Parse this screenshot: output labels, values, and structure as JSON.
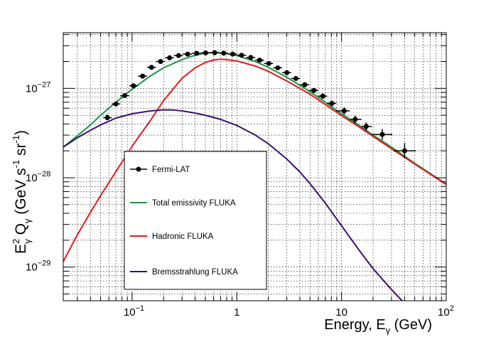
{
  "chart_data": {
    "type": "line",
    "title": "",
    "xlabel": {
      "main": "Energy, E",
      "sub": "γ",
      "suffix": " (GeV)"
    },
    "ylabel": {
      "e": "E",
      "e_sup": "2",
      "e_sub": "γ",
      "q": " Q",
      "q_sub": "γ",
      "units": " (GeV s",
      "s_sup": "-1",
      "sr": " sr",
      "sr_sup": "-1",
      "close": ")"
    },
    "xscale": "log",
    "yscale": "log",
    "xlim": [
      0.022,
      100
    ],
    "ylim": [
      4.2e-30,
      4.2e-27
    ],
    "grid": true,
    "legend_position": "lower-left inside",
    "xticks": [
      {
        "base": "10",
        "exp": "−1",
        "value": 0.1
      },
      {
        "plain": "1",
        "value": 1
      },
      {
        "plain": "10",
        "value": 10
      },
      {
        "plain": "10",
        "exp": "2",
        "value": 100
      }
    ],
    "yticks": [
      {
        "base": "10",
        "exp": "−29",
        "value": 1e-29
      },
      {
        "base": "10",
        "exp": "−28",
        "value": 1e-28
      },
      {
        "base": "10",
        "exp": "−27",
        "value": 1e-27
      }
    ],
    "series": [
      {
        "name": "Total emissivity FLUKA",
        "color": "#1a9641",
        "points": [
          [
            0.022,
            2.2e-28
          ],
          [
            0.03,
            2.95e-28
          ],
          [
            0.04,
            3.9e-28
          ],
          [
            0.05,
            5e-28
          ],
          [
            0.07,
            7e-28
          ],
          [
            0.1,
            9.8e-28
          ],
          [
            0.15,
            1.38e-27
          ],
          [
            0.2,
            1.7e-27
          ],
          [
            0.3,
            2.1e-27
          ],
          [
            0.4,
            2.35e-27
          ],
          [
            0.5,
            2.48e-27
          ],
          [
            0.6,
            2.52e-27
          ],
          [
            0.7,
            2.5e-27
          ],
          [
            0.8,
            2.45e-27
          ],
          [
            1.0,
            2.33e-27
          ],
          [
            1.5,
            2e-27
          ],
          [
            2.0,
            1.72e-27
          ],
          [
            3.0,
            1.33e-27
          ],
          [
            5.0,
            9.2e-28
          ],
          [
            7.0,
            7e-28
          ],
          [
            10.0,
            5.2e-28
          ],
          [
            15.0,
            3.8e-28
          ],
          [
            20.0,
            3e-28
          ],
          [
            30.0,
            2.2e-28
          ],
          [
            50.0,
            1.45e-28
          ],
          [
            70.0,
            1.12e-28
          ],
          [
            100.0,
            8.5e-29
          ]
        ]
      },
      {
        "name": "Hadronic FLUKA",
        "color": "#e31a1c",
        "points": [
          [
            0.022,
            1.15e-29
          ],
          [
            0.03,
            2.3e-29
          ],
          [
            0.04,
            4.1e-29
          ],
          [
            0.05,
            6.3e-29
          ],
          [
            0.07,
            1.17e-28
          ],
          [
            0.1,
            2.25e-28
          ],
          [
            0.15,
            4.4e-28
          ],
          [
            0.2,
            7.3e-28
          ],
          [
            0.3,
            1.3e-27
          ],
          [
            0.4,
            1.7e-27
          ],
          [
            0.5,
            1.95e-27
          ],
          [
            0.6,
            2.08e-27
          ],
          [
            0.7,
            2.12e-27
          ],
          [
            0.8,
            2.1e-27
          ],
          [
            1.0,
            2.03e-27
          ],
          [
            1.5,
            1.78e-27
          ],
          [
            2.0,
            1.55e-27
          ],
          [
            3.0,
            1.21e-27
          ],
          [
            5.0,
            8.6e-28
          ],
          [
            7.0,
            6.6e-28
          ],
          [
            10.0,
            4.95e-28
          ],
          [
            15.0,
            3.65e-28
          ],
          [
            20.0,
            2.9e-28
          ],
          [
            30.0,
            2.12e-28
          ],
          [
            50.0,
            1.42e-28
          ],
          [
            70.0,
            1.1e-28
          ],
          [
            100.0,
            8.4e-29
          ]
        ]
      },
      {
        "name": "Bremsstrahlung FLUKA",
        "color": "#3b0f70",
        "points": [
          [
            0.022,
            2.2e-28
          ],
          [
            0.03,
            2.8e-28
          ],
          [
            0.04,
            3.4e-28
          ],
          [
            0.05,
            3.9e-28
          ],
          [
            0.07,
            4.65e-28
          ],
          [
            0.1,
            5.2e-28
          ],
          [
            0.15,
            5.6e-28
          ],
          [
            0.2,
            5.75e-28
          ],
          [
            0.25,
            5.72e-28
          ],
          [
            0.3,
            5.6e-28
          ],
          [
            0.4,
            5.3e-28
          ],
          [
            0.5,
            5e-28
          ],
          [
            0.7,
            4.5e-28
          ],
          [
            1.0,
            3.85e-28
          ],
          [
            1.5,
            3e-28
          ],
          [
            2.0,
            2.4e-28
          ],
          [
            3.0,
            1.62e-28
          ],
          [
            4.0,
            1.16e-28
          ],
          [
            5.0,
            8.6e-29
          ],
          [
            7.0,
            5.2e-29
          ],
          [
            10.0,
            2.9e-29
          ],
          [
            15.0,
            1.5e-29
          ],
          [
            20.0,
            9.6e-30
          ],
          [
            30.0,
            5.6e-30
          ],
          [
            45.0,
            3.4e-30
          ]
        ]
      }
    ],
    "data_series": {
      "name": "Fermi-LAT",
      "color": "#000000",
      "points": [
        {
          "x": 0.058,
          "y": 4.7e-28,
          "xlo": 0.053,
          "xhi": 0.064,
          "ylo": 4.4e-28,
          "yhi": 5.1e-28
        },
        {
          "x": 0.07,
          "y": 6.7e-28,
          "xlo": 0.064,
          "xhi": 0.077,
          "ylo": 6.3e-28,
          "yhi": 7.1e-28
        },
        {
          "x": 0.085,
          "y": 8.3e-28,
          "xlo": 0.077,
          "xhi": 0.094,
          "ylo": 7.9e-28,
          "yhi": 8.8e-28
        },
        {
          "x": 0.103,
          "y": 1.07e-27,
          "xlo": 0.094,
          "xhi": 0.114,
          "ylo": 1.02e-27,
          "yhi": 1.12e-27
        },
        {
          "x": 0.126,
          "y": 1.37e-27,
          "xlo": 0.114,
          "xhi": 0.139,
          "ylo": 1.32e-27,
          "yhi": 1.42e-27
        },
        {
          "x": 0.153,
          "y": 1.72e-27,
          "xlo": 0.139,
          "xhi": 0.169,
          "ylo": 1.66e-27,
          "yhi": 1.78e-27
        },
        {
          "x": 0.187,
          "y": 2e-27,
          "xlo": 0.169,
          "xhi": 0.206,
          "ylo": 1.94e-27,
          "yhi": 2.06e-27
        },
        {
          "x": 0.228,
          "y": 2.2e-27,
          "xlo": 0.206,
          "xhi": 0.251,
          "ylo": 2.14e-27,
          "yhi": 2.26e-27
        },
        {
          "x": 0.278,
          "y": 2.33e-27,
          "xlo": 0.251,
          "xhi": 0.306,
          "ylo": 2.27e-27,
          "yhi": 2.39e-27
        },
        {
          "x": 0.339,
          "y": 2.42e-27,
          "xlo": 0.306,
          "xhi": 0.373,
          "ylo": 2.36e-27,
          "yhi": 2.48e-27
        },
        {
          "x": 0.413,
          "y": 2.47e-27,
          "xlo": 0.373,
          "xhi": 0.455,
          "ylo": 2.41e-27,
          "yhi": 2.53e-27
        },
        {
          "x": 0.504,
          "y": 2.5e-27,
          "xlo": 0.455,
          "xhi": 0.555,
          "ylo": 2.44e-27,
          "yhi": 2.56e-27
        },
        {
          "x": 0.614,
          "y": 2.51e-27,
          "xlo": 0.555,
          "xhi": 0.677,
          "ylo": 2.45e-27,
          "yhi": 2.57e-27
        },
        {
          "x": 0.749,
          "y": 2.48e-27,
          "xlo": 0.677,
          "xhi": 0.825,
          "ylo": 2.42e-27,
          "yhi": 2.54e-27
        },
        {
          "x": 0.913,
          "y": 2.42e-27,
          "xlo": 0.825,
          "xhi": 1.006,
          "ylo": 2.36e-27,
          "yhi": 2.48e-27
        },
        {
          "x": 1.11,
          "y": 2.35e-27,
          "xlo": 1.006,
          "xhi": 1.23,
          "ylo": 2.28e-27,
          "yhi": 2.42e-27
        },
        {
          "x": 1.36,
          "y": 2.22e-27,
          "xlo": 1.23,
          "xhi": 1.5,
          "ylo": 2.15e-27,
          "yhi": 2.29e-27
        },
        {
          "x": 1.65,
          "y": 2.07e-27,
          "xlo": 1.5,
          "xhi": 1.82,
          "ylo": 2e-27,
          "yhi": 2.14e-27
        },
        {
          "x": 2.02,
          "y": 1.9e-27,
          "xlo": 1.82,
          "xhi": 2.22,
          "ylo": 1.83e-27,
          "yhi": 1.97e-27
        },
        {
          "x": 2.46,
          "y": 1.7e-27,
          "xlo": 2.22,
          "xhi": 2.71,
          "ylo": 1.63e-27,
          "yhi": 1.77e-27
        },
        {
          "x": 3.0,
          "y": 1.5e-27,
          "xlo": 2.71,
          "xhi": 3.3,
          "ylo": 1.43e-27,
          "yhi": 1.57e-27
        },
        {
          "x": 3.66,
          "y": 1.29e-27,
          "xlo": 3.3,
          "xhi": 4.03,
          "ylo": 1.22e-27,
          "yhi": 1.36e-27
        },
        {
          "x": 4.46,
          "y": 1.1e-27,
          "xlo": 4.03,
          "xhi": 4.91,
          "ylo": 1.03e-27,
          "yhi": 1.17e-27
        },
        {
          "x": 5.44,
          "y": 9.5e-28,
          "xlo": 4.91,
          "xhi": 5.99,
          "ylo": 8.9e-28,
          "yhi": 1.01e-27
        },
        {
          "x": 6.63,
          "y": 8.2e-28,
          "xlo": 5.99,
          "xhi": 7.3,
          "ylo": 7.6e-28,
          "yhi": 8.8e-28
        },
        {
          "x": 8.09,
          "y": 6.8e-28,
          "xlo": 7.3,
          "xhi": 8.9,
          "ylo": 6.3e-28,
          "yhi": 7.3e-28
        },
        {
          "x": 10.6,
          "y": 5.6e-28,
          "xlo": 8.9,
          "xhi": 12.0,
          "ylo": 5.1e-28,
          "yhi": 6.1e-28
        },
        {
          "x": 13.5,
          "y": 4.5e-28,
          "xlo": 12.0,
          "xhi": 15.5,
          "ylo": 4.05e-28,
          "yhi": 4.95e-28
        },
        {
          "x": 17.2,
          "y": 3.75e-28,
          "xlo": 15.5,
          "xhi": 19.5,
          "ylo": 3.35e-28,
          "yhi": 4.15e-28
        },
        {
          "x": 24.5,
          "y": 3.05e-28,
          "xlo": 19.5,
          "xhi": 30.5,
          "ylo": 2.65e-28,
          "yhi": 3.5e-28
        },
        {
          "x": 40.0,
          "y": 2e-28,
          "xlo": 31.5,
          "xhi": 51.0,
          "ylo": 1.65e-28,
          "yhi": 2.45e-28
        }
      ]
    },
    "legend": [
      {
        "label": "Fermi-LAT",
        "kind": "marker",
        "color": "#000000"
      },
      {
        "label": "Total emissivity FLUKA",
        "kind": "line",
        "color": "#1a9641"
      },
      {
        "label": "Hadronic FLUKA",
        "kind": "line",
        "color": "#e31a1c"
      },
      {
        "label": "Bremsstrahlung FLUKA",
        "kind": "line",
        "color": "#3b0f70"
      }
    ]
  }
}
